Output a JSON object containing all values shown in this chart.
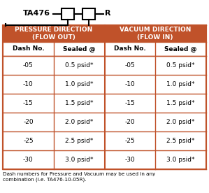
{
  "title": "TA476",
  "border_color": "#C0522A",
  "text_color": "#000000",
  "col_headers": [
    "Dash No.",
    "Sealed @",
    "Dash No.",
    "Sealed @"
  ],
  "section_headers": [
    "PRESSURE DIRECTION\n(FLOW OUT)",
    "VACUUM DIRECTION\n(FLOW IN)"
  ],
  "dash_numbers": [
    "-05",
    "-10",
    "-15",
    "-20",
    "-25",
    "-30"
  ],
  "sealed_values": [
    "0.5 psid*",
    "1.0 psid*",
    "1.5 psid*",
    "2.0 psid*",
    "2.5 psid*",
    "3.0 psid*"
  ],
  "footnote": "Dash numbers for Pressure and Vacuum may be used in any\ncombination (i.e. TA476-10-05R).",
  "fig_w": 2.99,
  "fig_h": 2.76,
  "dpi": 100
}
